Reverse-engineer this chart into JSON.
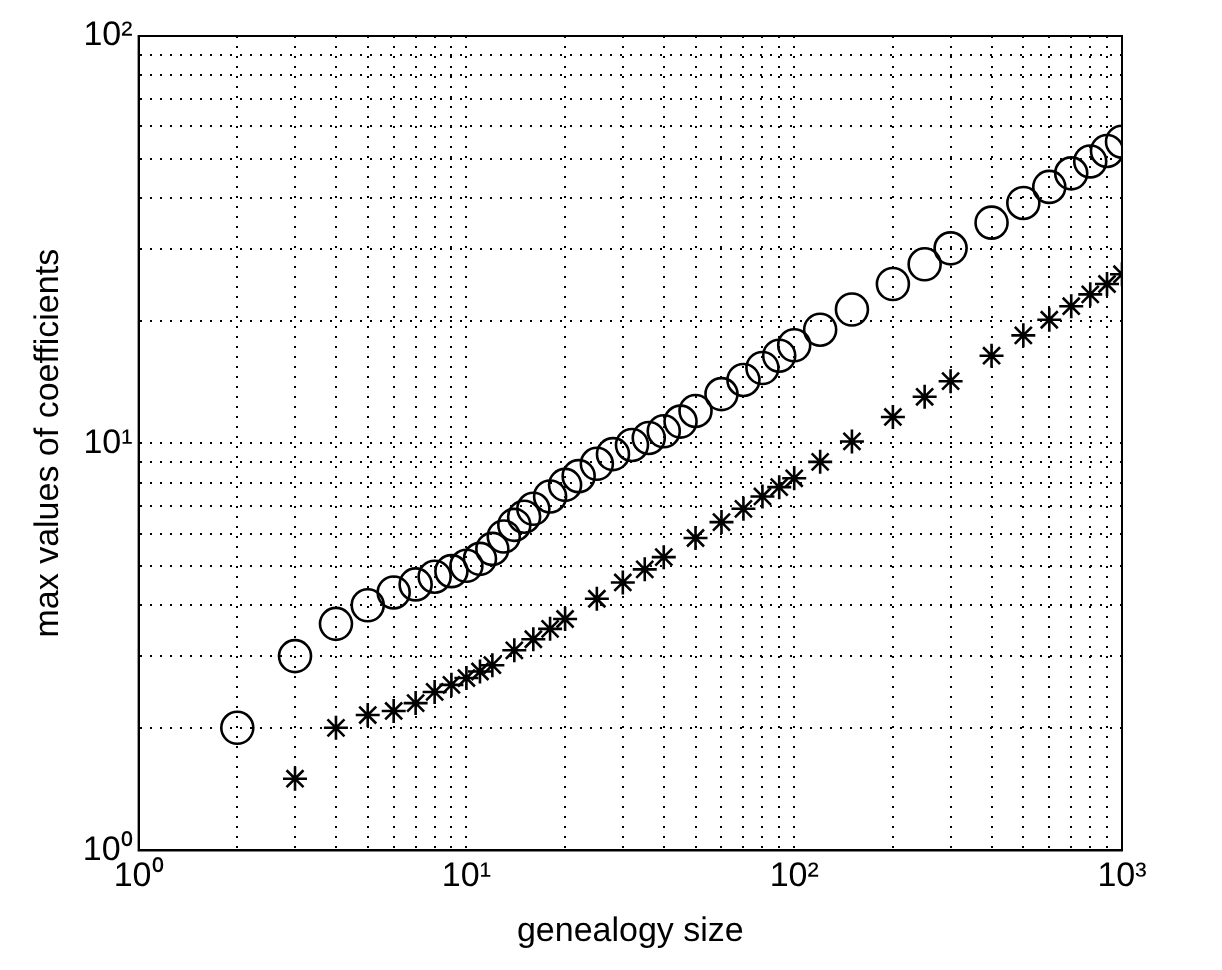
{
  "chart_data": {
    "type": "scatter",
    "xlabel": "genealogy size",
    "ylabel": "max values of coefficients",
    "log": "xy",
    "grid": true,
    "legend": false,
    "xlim": [
      1,
      1000
    ],
    "ylim": [
      1,
      100
    ],
    "xticks": [
      {
        "value": 1,
        "label": "10⁰"
      },
      {
        "value": 2,
        "label": null
      },
      {
        "value": 3,
        "label": null
      },
      {
        "value": 4,
        "label": null
      },
      {
        "value": 5,
        "label": null
      },
      {
        "value": 6,
        "label": null
      },
      {
        "value": 7,
        "label": null
      },
      {
        "value": 8,
        "label": null
      },
      {
        "value": 9,
        "label": null
      },
      {
        "value": 10,
        "label": "10¹"
      },
      {
        "value": 20,
        "label": null
      },
      {
        "value": 30,
        "label": null
      },
      {
        "value": 40,
        "label": null
      },
      {
        "value": 50,
        "label": null
      },
      {
        "value": 60,
        "label": null
      },
      {
        "value": 70,
        "label": null
      },
      {
        "value": 80,
        "label": null
      },
      {
        "value": 90,
        "label": null
      },
      {
        "value": 100,
        "label": "10²"
      },
      {
        "value": 200,
        "label": null
      },
      {
        "value": 300,
        "label": null
      },
      {
        "value": 400,
        "label": null
      },
      {
        "value": 500,
        "label": null
      },
      {
        "value": 600,
        "label": null
      },
      {
        "value": 700,
        "label": null
      },
      {
        "value": 800,
        "label": null
      },
      {
        "value": 900,
        "label": null
      },
      {
        "value": 1000,
        "label": "10³"
      }
    ],
    "yticks": [
      {
        "value": 1,
        "label": "10⁰"
      },
      {
        "value": 2,
        "label": null
      },
      {
        "value": 3,
        "label": null
      },
      {
        "value": 4,
        "label": null
      },
      {
        "value": 5,
        "label": null
      },
      {
        "value": 6,
        "label": null
      },
      {
        "value": 7,
        "label": null
      },
      {
        "value": 8,
        "label": null
      },
      {
        "value": 9,
        "label": null
      },
      {
        "value": 10,
        "label": "10¹"
      },
      {
        "value": 20,
        "label": null
      },
      {
        "value": 30,
        "label": null
      },
      {
        "value": 40,
        "label": null
      },
      {
        "value": 50,
        "label": null
      },
      {
        "value": 60,
        "label": null
      },
      {
        "value": 70,
        "label": null
      },
      {
        "value": 80,
        "label": null
      },
      {
        "value": 90,
        "label": null
      },
      {
        "value": 100,
        "label": "10²"
      }
    ],
    "series": [
      {
        "color": "#000000",
        "marker": "circle",
        "x": [
          2,
          3,
          4,
          5,
          6,
          7,
          8,
          9,
          10,
          11,
          12,
          13,
          14,
          15,
          16,
          18,
          20,
          22,
          25,
          28,
          32,
          36,
          40,
          45,
          50,
          60,
          70,
          80,
          90,
          100,
          120,
          150,
          200,
          250,
          300,
          400,
          500,
          600,
          700,
          800,
          900,
          1000
        ],
        "values": [
          2,
          3,
          3.6,
          4,
          4.3,
          4.5,
          4.7,
          4.85,
          5,
          5.2,
          5.5,
          5.9,
          6.3,
          6.6,
          6.9,
          7.4,
          7.9,
          8.3,
          8.9,
          9.4,
          9.9,
          10.3,
          10.7,
          11.3,
          12,
          13.2,
          14.3,
          15.3,
          16.4,
          17.4,
          19,
          21.3,
          24.6,
          27.5,
          30.1,
          34.8,
          38.9,
          42.6,
          46,
          49.2,
          52.2,
          55
        ]
      },
      {
        "color": "#000000",
        "marker": "cross",
        "x": [
          3,
          4,
          5,
          6,
          7,
          8,
          9,
          10,
          11,
          12,
          14,
          16,
          18,
          20,
          25,
          30,
          35,
          40,
          50,
          60,
          70,
          80,
          90,
          100,
          120,
          150,
          200,
          250,
          300,
          400,
          500,
          600,
          700,
          800,
          900,
          1000
        ],
        "values": [
          1.5,
          2,
          2.15,
          2.2,
          2.3,
          2.45,
          2.55,
          2.65,
          2.75,
          2.85,
          3.1,
          3.3,
          3.5,
          3.7,
          4.15,
          4.55,
          4.9,
          5.25,
          5.85,
          6.4,
          6.9,
          7.4,
          7.8,
          8.2,
          9,
          10.1,
          11.6,
          13,
          14.2,
          16.4,
          18.4,
          20.1,
          21.7,
          23.2,
          24.6,
          26
        ]
      }
    ]
  }
}
